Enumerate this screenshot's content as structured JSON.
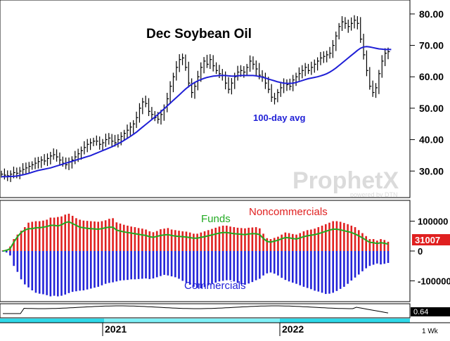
{
  "panels": {
    "price": {
      "title": "Dec Soybean Oil",
      "ma_label": "100-day avg",
      "watermark_main": "ProphetX",
      "watermark_sub": "powered by DTN",
      "ylim": [
        22,
        84
      ],
      "y_ticks": [
        30,
        40,
        50,
        60,
        70,
        80
      ],
      "y_tick_labels": [
        "30.00",
        "40.00",
        "50.00",
        "60.00",
        "70.00",
        "80.00"
      ]
    },
    "cot": {
      "funds_label": "Funds",
      "noncommercials_label": "Noncommercials",
      "commercials_label": "Commercials",
      "last_value": "31007",
      "ylim": [
        -165000,
        165000
      ],
      "y_ticks": [
        100000,
        0,
        -100000
      ],
      "y_tick_labels": [
        "100000",
        "0",
        "-100000"
      ]
    },
    "oscillator": {
      "last_value": "0.64"
    }
  },
  "x_axis": {
    "labels": [
      "2021",
      "2022"
    ],
    "interval_label": "1 Wk"
  },
  "colors": {
    "price_bars": "#000000",
    "moving_average": "#1f1fd6",
    "noncommercials": "#e02020",
    "commercials": "#2323d8",
    "funds": "#22aa22",
    "last_value_box": "#e02020",
    "timeline": "#2fd8e8"
  },
  "chart_data": [
    {
      "type": "line",
      "title": "Dec Soybean Oil",
      "annotation": "100-day avg",
      "grid": false,
      "ylim": [
        22,
        84
      ],
      "x_labels": [
        "2021",
        "2022"
      ],
      "series": [
        {
          "name": "Dec Soybean Oil",
          "values": [
            29,
            28.7,
            28.5,
            29,
            29.5,
            29.3,
            30,
            30.5,
            31,
            31.5,
            32,
            32.5,
            33,
            33.5,
            33.2,
            34,
            34.8,
            35.2,
            34.5,
            33.5,
            32.5,
            32,
            32.8,
            33.5,
            34.5,
            35.5,
            36.5,
            37.5,
            38.5,
            39,
            39.5,
            39.5,
            38.5,
            39,
            40,
            40.5,
            39.5,
            39,
            40,
            41,
            42,
            43,
            44,
            45,
            47,
            50,
            52,
            51.5,
            49,
            48,
            47,
            46.5,
            48,
            50,
            53,
            57,
            60,
            63,
            65.5,
            66,
            63,
            58,
            55,
            57,
            60,
            63,
            65,
            64,
            65.5,
            63.5,
            62,
            61,
            60.5,
            58,
            56,
            58,
            60,
            61.5,
            62,
            61.5,
            63,
            65,
            64,
            62.5,
            60.5,
            60,
            58,
            56,
            53.5,
            53,
            55,
            56.5,
            58,
            57.5,
            57,
            59,
            60,
            61,
            62,
            63,
            62,
            63,
            64,
            65,
            66,
            66.5,
            67,
            67.5,
            70,
            73,
            76,
            77.5,
            77,
            76,
            77,
            78,
            77,
            72,
            67,
            62,
            57,
            55,
            56.5,
            61,
            65,
            67.5,
            68
          ]
        },
        {
          "name": "100-day avg",
          "values": [
            28.2,
            28.2,
            28.2,
            28.3,
            28.3,
            28.4,
            28.6,
            28.8,
            29,
            29.3,
            29.6,
            29.9,
            30.2,
            30.4,
            30.6,
            30.8,
            31,
            31.3,
            31.6,
            31.9,
            32.2,
            32.5,
            32.8,
            33.1,
            33.4,
            33.7,
            34,
            34.3,
            34.6,
            34.9,
            35.3,
            35.7,
            36.1,
            36.5,
            36.9,
            37.3,
            37.7,
            38.2,
            38.7,
            39.2,
            39.8,
            40.4,
            41,
            41.7,
            42.4,
            43.2,
            44,
            44.8,
            45.6,
            46.4,
            47.2,
            48,
            48.9,
            49.8,
            50.7,
            51.6,
            52.5,
            53.4,
            54.3,
            55.2,
            56.1,
            56.9,
            57.6,
            58.2,
            58.7,
            59.1,
            59.5,
            59.8,
            60,
            60.2,
            60.3,
            60.4,
            60.4,
            60.4,
            60.3,
            60.2,
            60.2,
            60.3,
            60.4,
            60.4,
            60.4,
            60.4,
            60.4,
            60.3,
            60.1,
            59.9,
            59.6,
            59.3,
            59,
            58.7,
            58.4,
            58.2,
            58,
            57.9,
            57.9,
            58,
            58.2,
            58.5,
            58.8,
            59.1,
            59.4,
            59.6,
            59.8,
            60,
            60.3,
            60.6,
            61,
            61.5,
            62.1,
            62.8,
            63.6,
            64.4,
            65.2,
            66,
            66.8,
            67.6,
            68.4,
            69.1,
            69.5,
            69.6,
            69.5,
            69.3,
            69.1,
            68.9,
            68.8,
            68.7,
            68.7,
            68.7
          ]
        }
      ]
    },
    {
      "type": "bar",
      "grid": false,
      "ylim": [
        -165000,
        165000
      ],
      "series": [
        {
          "name": "Noncommercials",
          "values": [
            2000,
            5000,
            15000,
            40000,
            55000,
            68000,
            80000,
            95000,
            98000,
            100000,
            100000,
            102000,
            105000,
            112000,
            112000,
            114000,
            116000,
            122000,
            125000,
            118000,
            110000,
            105000,
            102000,
            101000,
            100000,
            99000,
            98000,
            100000,
            103000,
            108000,
            110000,
            96000,
            92000,
            88000,
            85000,
            82000,
            80000,
            77000,
            75000,
            72000,
            66000,
            63000,
            67000,
            73000,
            75000,
            77000,
            72000,
            70000,
            68000,
            66000,
            65000,
            62000,
            58000,
            58000,
            62000,
            66000,
            70000,
            74000,
            78000,
            82000,
            85000,
            85000,
            82000,
            80000,
            78000,
            77000,
            76000,
            78000,
            79000,
            80000,
            76000,
            58000,
            43000,
            40000,
            44000,
            48000,
            55000,
            62000,
            60000,
            57000,
            55000,
            60000,
            66000,
            70000,
            72000,
            75000,
            80000,
            85000,
            90000,
            95000,
            100000,
            100000,
            98000,
            94000,
            90000,
            85000,
            80000,
            70000,
            60000,
            50000,
            40000,
            40000,
            35000,
            40000,
            37000,
            31007
          ]
        },
        {
          "name": "Commercials",
          "values": [
            -2000,
            -5000,
            -15000,
            -50000,
            -70000,
            -95000,
            -112000,
            -122000,
            -132000,
            -140000,
            -143000,
            -145000,
            -148000,
            -152000,
            -150000,
            -152000,
            -150000,
            -146000,
            -141000,
            -137000,
            -135000,
            -133000,
            -132000,
            -129000,
            -126000,
            -123000,
            -120000,
            -115000,
            -110000,
            -107000,
            -105000,
            -102000,
            -99000,
            -98000,
            -97000,
            -95000,
            -95000,
            -94000,
            -93000,
            -92000,
            -94000,
            -92000,
            -88000,
            -84000,
            -80000,
            -82000,
            -85000,
            -88000,
            -93000,
            -100000,
            -107000,
            -113000,
            -120000,
            -124000,
            -125000,
            -121000,
            -115000,
            -110000,
            -106000,
            -102000,
            -100000,
            -98000,
            -98000,
            -102000,
            -107000,
            -111000,
            -113000,
            -109000,
            -104000,
            -98000,
            -93000,
            -82000,
            -75000,
            -72000,
            -76000,
            -82000,
            -90000,
            -97000,
            -102000,
            -106000,
            -110000,
            -115000,
            -120000,
            -124000,
            -128000,
            -133000,
            -136000,
            -140000,
            -144000,
            -143000,
            -140000,
            -134000,
            -127000,
            -120000,
            -110000,
            -99000,
            -89000,
            -79000,
            -68000,
            -58000,
            -50000,
            -46000,
            -42000,
            -45000,
            -43000,
            -40000
          ]
        },
        {
          "name": "Funds",
          "values": [
            0,
            2000,
            8000,
            30000,
            48000,
            62000,
            70000,
            75000,
            75000,
            78000,
            78000,
            80000,
            82000,
            86000,
            86000,
            84000,
            88000,
            95000,
            98000,
            92000,
            86000,
            80000,
            78000,
            76000,
            75000,
            74000,
            73000,
            75000,
            78000,
            80000,
            80000,
            70000,
            67000,
            64000,
            62000,
            60000,
            58000,
            56000,
            54000,
            52000,
            48000,
            46000,
            49000,
            52000,
            54000,
            55000,
            52000,
            50000,
            49000,
            48000,
            47000,
            45000,
            43000,
            43000,
            46000,
            48000,
            51000,
            54000,
            57000,
            60000,
            62000,
            62000,
            60000,
            58000,
            57000,
            56000,
            55000,
            57000,
            58000,
            58000,
            55000,
            42000,
            32000,
            30000,
            33000,
            36000,
            41000,
            45000,
            44000,
            42000,
            40000,
            44000,
            48000,
            51000,
            53000,
            55000,
            58000,
            62000,
            66000,
            70000,
            73000,
            73000,
            71000,
            68000,
            65000,
            62000,
            57000,
            51000,
            44000,
            36000,
            29000,
            28000,
            25000,
            28000,
            26000,
            23000
          ]
        }
      ]
    }
  ]
}
